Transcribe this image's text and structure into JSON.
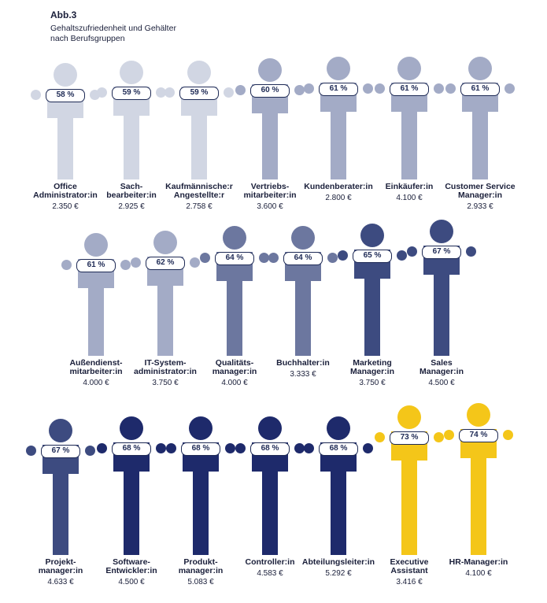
{
  "chart_data": {
    "type": "pictogram",
    "title": "Abb.3",
    "subtitle": "Gehaltszufriedenheit und Gehälter\nnach Berufsgruppen",
    "categories": [
      "Office\nAdministrator:in",
      "Sach-\nbearbeiter:in",
      "Kaufmännische:r\nAngestellte:r",
      "Vertriebs-\nmitarbeiter:in",
      "Kundenberater:in",
      "Einkäufer:in",
      "Customer Service\nManager:in",
      "Außendienst-\nmitarbeiter:in",
      "IT-System-\nadministrator:in",
      "Qualitäts-\nmanager:in",
      "Buchhalter:in",
      "Marketing\nManager:in",
      "Sales\nManager:in",
      "Projekt-\nmanager:in",
      "Software-\nEntwickler:in",
      "Produkt-\nmanager:in",
      "Controller:in",
      "Abteilungsleiter:in",
      "Executive\nAssistant",
      "HR-Manager:in"
    ],
    "values": [
      58,
      59,
      59,
      60,
      61,
      61,
      61,
      61,
      62,
      64,
      64,
      65,
      67,
      67,
      68,
      68,
      68,
      68,
      73,
      74
    ],
    "value_labels": [
      "58 %",
      "59 %",
      "59 %",
      "60 %",
      "61 %",
      "61 %",
      "61 %",
      "61 %",
      "62 %",
      "64 %",
      "64 %",
      "65 %",
      "67 %",
      "67 %",
      "68 %",
      "68 %",
      "68 %",
      "68 %",
      "73 %",
      "74 %"
    ],
    "salaries": [
      2350,
      2925,
      2758,
      3600,
      2800,
      4100,
      2933,
      4000,
      3750,
      4000,
      3333,
      3750,
      4500,
      4633,
      4500,
      5083,
      4583,
      5292,
      3416,
      4100
    ],
    "salary_labels": [
      "2.350 €",
      "2.925 €",
      "2.758 €",
      "3.600 €",
      "2.800 €",
      "4.100 €",
      "2.933 €",
      "4.000 €",
      "3.750 €",
      "4.000 €",
      "3.333 €",
      "3.750 €",
      "4.500 €",
      "4.633 €",
      "4.500 €",
      "5.083 €",
      "4.583 €",
      "5.292 €",
      "3.416 €",
      "4.100 €"
    ],
    "colors": [
      "#d1d6e3",
      "#d1d6e3",
      "#d1d6e3",
      "#a3abc6",
      "#a3abc6",
      "#a3abc6",
      "#a3abc6",
      "#a3abc6",
      "#a3abc6",
      "#6c779f",
      "#6c779f",
      "#3d4b80",
      "#3d4b80",
      "#3d4b80",
      "#1e2a6b",
      "#1e2a6b",
      "#1e2a6b",
      "#1e2a6b",
      "#f4c619",
      "#f4c619"
    ]
  }
}
